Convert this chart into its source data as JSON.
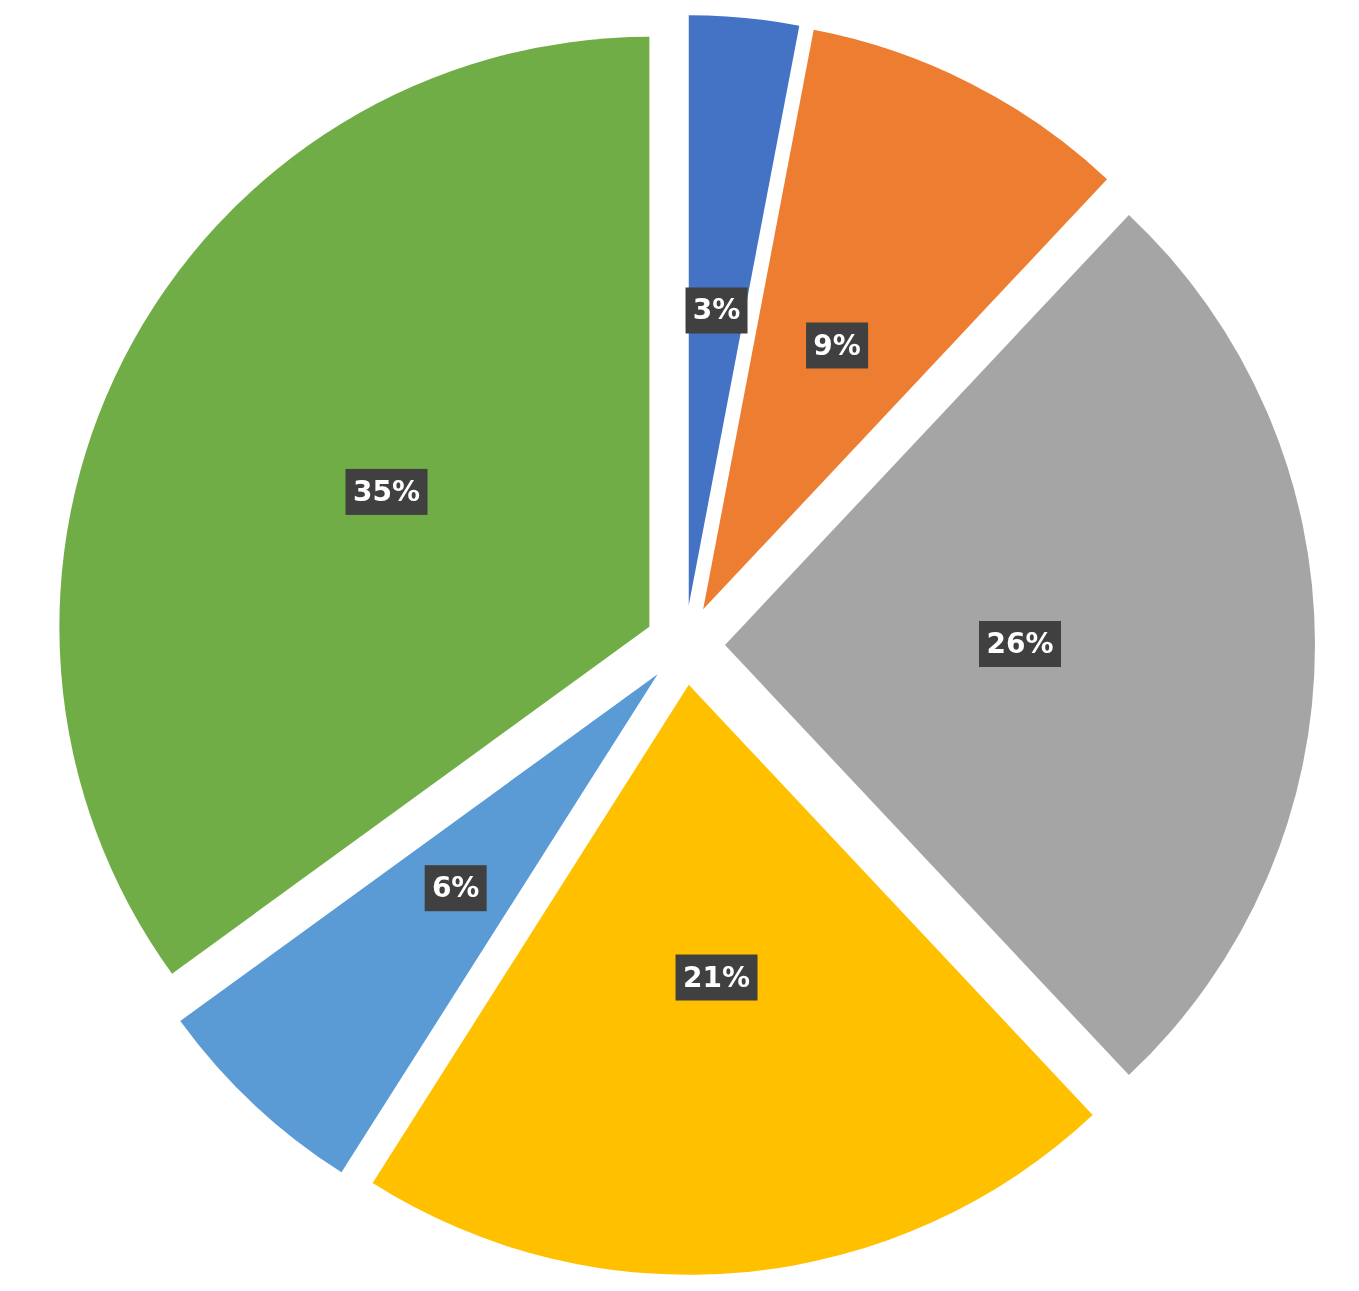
{
  "chart_data": {
    "type": "pie",
    "categories": [
      null,
      null,
      null,
      null,
      null,
      null
    ],
    "values": [
      3,
      9,
      26,
      21,
      6,
      35
    ],
    "colors": [
      "#4472c4",
      "#ed7d31",
      "#a5a5a5",
      "#ffc000",
      "#5b9bd5",
      "#70ad47"
    ],
    "value_labels": [
      "3%",
      "9%",
      "26%",
      "21%",
      "6%",
      "35%"
    ]
  }
}
